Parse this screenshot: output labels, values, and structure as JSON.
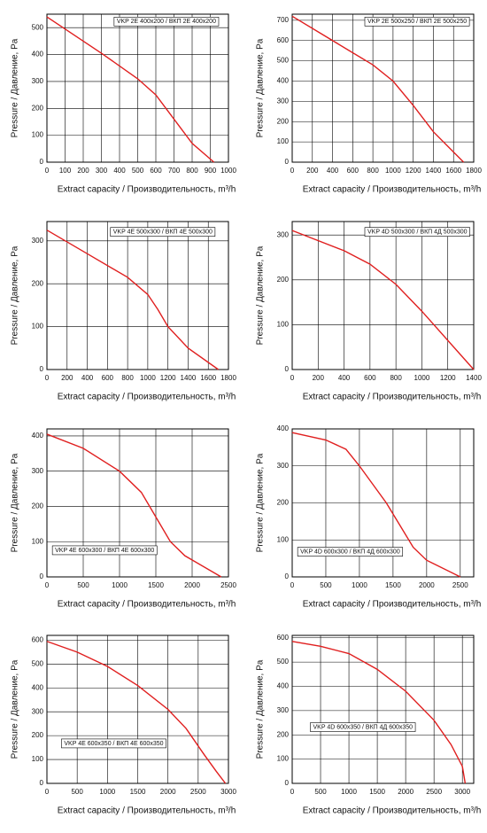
{
  "chart_data": [
    {
      "type": "line",
      "title": "VKP 2E 400x200 / ВКП 2Е 400x200",
      "x_label": "Extract capacity / Производительность, m³/h",
      "y_label": "Pressure / Давление, Pa",
      "x": [
        0,
        300,
        500,
        600,
        700,
        800,
        920
      ],
      "series": [
        {
          "name": "VKP 2E 400x200 / ВКП 2Е 400x200",
          "color": "#e01f1f",
          "values": [
            540,
            405,
            310,
            250,
            160,
            70,
            0
          ]
        }
      ],
      "xlim": [
        0,
        1000
      ],
      "xticks": [
        0,
        100,
        200,
        300,
        400,
        500,
        600,
        700,
        800,
        900,
        1000
      ],
      "ylim": [
        0,
        550
      ],
      "yticks": [
        0,
        100,
        200,
        300,
        400,
        500
      ],
      "grid": true
    },
    {
      "type": "line",
      "title": "VKP 2E 500x250 / ВКП 2Е 500x250",
      "x_label": "Extract capacity / Производительность, m³/h",
      "y_label": "Pressure / Давление, Pa",
      "x": [
        0,
        600,
        800,
        1000,
        1200,
        1400,
        1700
      ],
      "series": [
        {
          "name": "VKP 2E 500x250 / ВКП 2Е 500x250",
          "color": "#e01f1f",
          "values": [
            720,
            540,
            480,
            400,
            280,
            150,
            0
          ]
        }
      ],
      "xlim": [
        0,
        1800
      ],
      "xticks": [
        0,
        200,
        400,
        600,
        800,
        1000,
        1200,
        1400,
        1600,
        1800
      ],
      "ylim": [
        0,
        730
      ],
      "yticks": [
        0,
        100,
        200,
        300,
        400,
        500,
        600,
        700
      ],
      "grid": true
    },
    {
      "type": "line",
      "title": "VKP 4E 500x300 / ВКП 4Е 500x300",
      "x_label": "Extract capacity / Производительность, m³/h",
      "y_label": "Pressure / Давление, Pa",
      "x": [
        0,
        400,
        800,
        1000,
        1100,
        1200,
        1400,
        1700
      ],
      "series": [
        {
          "name": "VKP 4E 500x300 / ВКП 4Е 500x300",
          "color": "#e01f1f",
          "values": [
            325,
            270,
            215,
            175,
            140,
            100,
            50,
            0
          ]
        }
      ],
      "xlim": [
        0,
        1800
      ],
      "xticks": [
        0,
        200,
        400,
        600,
        800,
        1000,
        1200,
        1400,
        1600,
        1800
      ],
      "ylim": [
        0,
        345
      ],
      "yticks": [
        0,
        100,
        200,
        300
      ],
      "grid": true
    },
    {
      "type": "line",
      "title": "VKP 4D 500x300 / ВКП 4Д 500x300",
      "x_label": "Extract capacity / Производительность, m³/h",
      "y_label": "Pressure / Давление, Pa",
      "x": [
        0,
        400,
        600,
        800,
        1000,
        1200,
        1400
      ],
      "series": [
        {
          "name": "VKP 4D 500x300 / ВКП 4Д 500x300",
          "color": "#e01f1f",
          "values": [
            310,
            265,
            235,
            190,
            130,
            65,
            0
          ]
        }
      ],
      "xlim": [
        0,
        1400
      ],
      "xticks": [
        0,
        200,
        400,
        600,
        800,
        1000,
        1200,
        1400
      ],
      "ylim": [
        0,
        330
      ],
      "yticks": [
        0,
        100,
        200,
        300
      ],
      "grid": true
    },
    {
      "type": "line",
      "title": "VKP 4E 600x300 / ВКП 4Е 600x300",
      "x_label": "Extract capacity / Производительность, m³/h",
      "y_label": "Pressure / Давление, Pa",
      "x": [
        0,
        500,
        1000,
        1300,
        1500,
        1700,
        1900,
        2400
      ],
      "series": [
        {
          "name": "VKP 4E 600x300 / ВКП 4Е 600x300",
          "color": "#e01f1f",
          "values": [
            405,
            365,
            300,
            240,
            170,
            100,
            60,
            0
          ]
        }
      ],
      "xlim": [
        0,
        2500
      ],
      "xticks": [
        0,
        500,
        1000,
        1500,
        2000,
        2500
      ],
      "ylim": [
        0,
        420
      ],
      "yticks": [
        0,
        100,
        200,
        300,
        400
      ],
      "grid": true
    },
    {
      "type": "line",
      "title": "VKP 4D 600x300 / ВКП 4Д 600x300",
      "x_label": "Extract capacity / Производительность, m³/h",
      "y_label": "Pressure / Давление, Pa",
      "x": [
        0,
        500,
        800,
        1000,
        1200,
        1400,
        1600,
        1800,
        2000,
        2500
      ],
      "series": [
        {
          "name": "VKP 4D 600x300 / ВКП 4Д 600x300",
          "color": "#e01f1f",
          "values": [
            390,
            370,
            345,
            300,
            250,
            200,
            140,
            80,
            45,
            0
          ]
        }
      ],
      "xlim": [
        0,
        2700
      ],
      "xticks": [
        0,
        500,
        1000,
        1500,
        2000,
        2500
      ],
      "ylim": [
        0,
        400
      ],
      "yticks": [
        0,
        100,
        200,
        300,
        400
      ],
      "grid": true
    },
    {
      "type": "line",
      "title": "VKP 4E 600x350 / ВКП 4Е 600x350",
      "x_label": "Extract capacity / Производительность, m³/h",
      "y_label": "Pressure / Давление, Pa",
      "x": [
        0,
        500,
        1000,
        1500,
        2000,
        2300,
        2600,
        2800,
        2950
      ],
      "series": [
        {
          "name": "VKP 4E 600x350 / ВКП 4Е 600x350",
          "color": "#e01f1f",
          "values": [
            595,
            550,
            490,
            410,
            310,
            230,
            120,
            50,
            0
          ]
        }
      ],
      "xlim": [
        0,
        3000
      ],
      "xticks": [
        0,
        500,
        1000,
        1500,
        2000,
        2500,
        3000
      ],
      "ylim": [
        0,
        620
      ],
      "yticks": [
        0,
        100,
        200,
        300,
        400,
        500,
        600
      ],
      "grid": true
    },
    {
      "type": "line",
      "title": "VKP 4D 600x350 / ВКП 4Д 600x350",
      "x_label": "Extract capacity / Производительность, m³/h",
      "y_label": "Pressure / Давление, Pa",
      "x": [
        0,
        500,
        1000,
        1500,
        2000,
        2500,
        2800,
        3000,
        3050
      ],
      "series": [
        {
          "name": "VKP 4D 600x350 / ВКП 4Д 600x350",
          "color": "#e01f1f",
          "values": [
            585,
            565,
            535,
            470,
            380,
            260,
            160,
            70,
            0
          ]
        }
      ],
      "xlim": [
        0,
        3200
      ],
      "xticks": [
        0,
        500,
        1000,
        1500,
        2000,
        2500,
        3000
      ],
      "ylim": [
        0,
        610
      ],
      "yticks": [
        0,
        100,
        200,
        300,
        400,
        500,
        600
      ],
      "grid": true
    }
  ]
}
